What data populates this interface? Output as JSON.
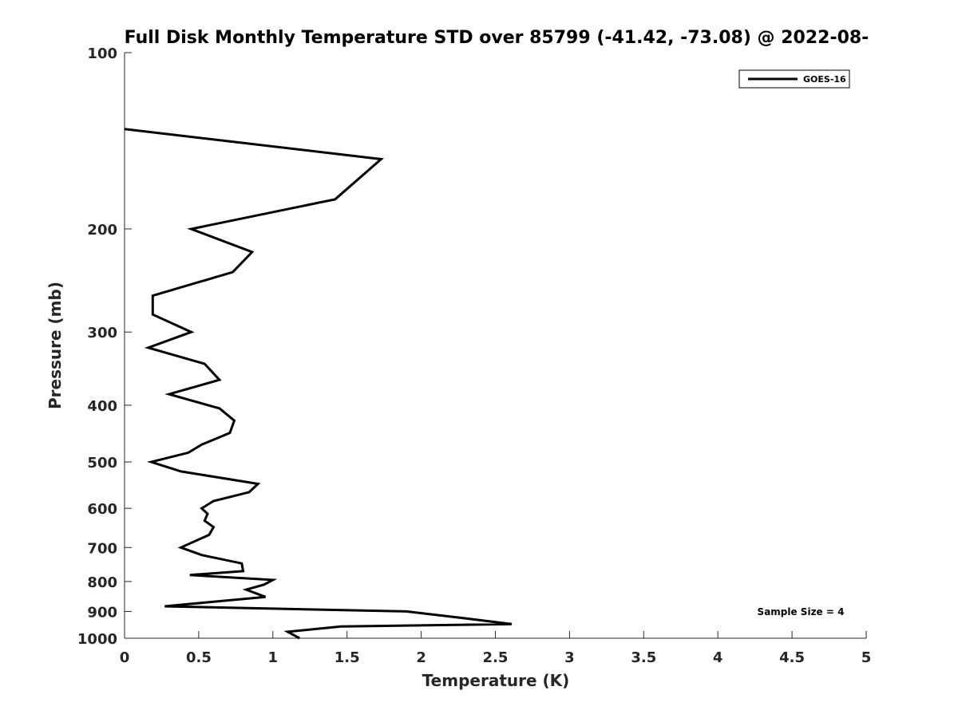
{
  "chart_data": {
    "type": "line",
    "title": "Full Disk Monthly Temperature STD over 85799 (-41.42, -73.08) @ 2022-08-",
    "xlabel": "Temperature (K)",
    "ylabel": "Pressure (mb)",
    "xlim": [
      0,
      5
    ],
    "ylim": [
      100,
      1000
    ],
    "y_scale": "log",
    "y_reversed": true,
    "x_ticks": [
      "0",
      "0.5",
      "1",
      "1.5",
      "2",
      "2.5",
      "3",
      "3.5",
      "4",
      "4.5",
      "5"
    ],
    "y_ticks": [
      "100",
      "200",
      "300",
      "400",
      "500",
      "600",
      "700",
      "800",
      "900",
      "1000"
    ],
    "grid": false,
    "legend_position": "top-right",
    "annotation": "Sample Size = 4",
    "series": [
      {
        "name": "GOES-16",
        "color": "#000000",
        "points": [
          [
            0.0,
            135
          ],
          [
            1.73,
            152
          ],
          [
            1.42,
            178
          ],
          [
            0.45,
            200
          ],
          [
            0.86,
            219
          ],
          [
            0.73,
            237
          ],
          [
            0.19,
            260
          ],
          [
            0.19,
            280
          ],
          [
            0.45,
            300
          ],
          [
            0.16,
            319
          ],
          [
            0.54,
            340
          ],
          [
            0.64,
            362
          ],
          [
            0.3,
            383
          ],
          [
            0.64,
            405
          ],
          [
            0.74,
            425
          ],
          [
            0.71,
            446
          ],
          [
            0.52,
            467
          ],
          [
            0.43,
            482
          ],
          [
            0.18,
            500
          ],
          [
            0.38,
            519
          ],
          [
            0.9,
            545
          ],
          [
            0.84,
            563
          ],
          [
            0.6,
            583
          ],
          [
            0.52,
            600
          ],
          [
            0.56,
            613
          ],
          [
            0.54,
            630
          ],
          [
            0.6,
            646
          ],
          [
            0.57,
            666
          ],
          [
            0.38,
            700
          ],
          [
            0.52,
            721
          ],
          [
            0.79,
            745
          ],
          [
            0.8,
            768
          ],
          [
            0.44,
            780
          ],
          [
            1.0,
            795
          ],
          [
            0.94,
            810
          ],
          [
            0.82,
            826
          ],
          [
            0.95,
            850
          ],
          [
            0.27,
            882
          ],
          [
            1.9,
            900
          ],
          [
            2.3,
            925
          ],
          [
            2.61,
            946
          ],
          [
            1.46,
            955
          ],
          [
            1.1,
            975
          ],
          [
            1.18,
            1000
          ]
        ]
      }
    ]
  }
}
